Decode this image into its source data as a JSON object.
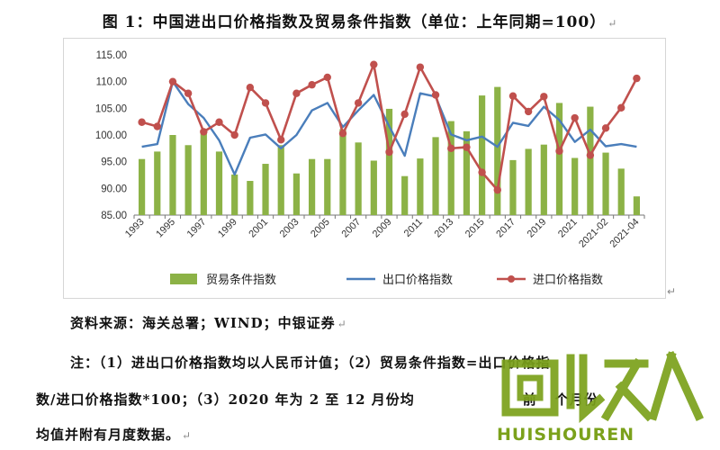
{
  "caption": "图 1：中国进出口价格指数及贸易条件指数（单位：上年同期=100）",
  "para_mark": "↵",
  "chart_data": {
    "type": "bar+line",
    "categories": [
      "1993",
      "1994",
      "1995",
      "1996",
      "1997",
      "1998",
      "1999",
      "2000",
      "2001",
      "2002",
      "2003",
      "2004",
      "2005",
      "2006",
      "2007",
      "2008",
      "2009",
      "2010",
      "2011",
      "2012",
      "2013",
      "2014",
      "2015",
      "2016",
      "2017",
      "2018",
      "2019",
      "2020",
      "2021",
      "2021-01",
      "2021-02",
      "2021-03",
      "2021-04"
    ],
    "xtick_labels": [
      "1993",
      "",
      "1995",
      "",
      "1997",
      "",
      "1999",
      "",
      "2001",
      "",
      "2003",
      "",
      "2005",
      "",
      "2007",
      "",
      "2009",
      "",
      "2011",
      "",
      "2013",
      "",
      "2015",
      "",
      "2017",
      "",
      "2019",
      "",
      "2021",
      "",
      "2021-02",
      "",
      "2021-04"
    ],
    "ylim": [
      85,
      115
    ],
    "yticks": [
      "85.00",
      "90.00",
      "95.00",
      "100.00",
      "105.00",
      "110.00",
      "115.00"
    ],
    "series": [
      {
        "name": "贸易条件指数",
        "kind": "bar",
        "color": "#8cb246",
        "values": [
          95.5,
          96.9,
          100.0,
          98.1,
          101.0,
          96.9,
          92.6,
          91.4,
          94.6,
          98.1,
          92.8,
          95.5,
          95.5,
          101.1,
          98.6,
          95.2,
          104.9,
          92.3,
          95.6,
          99.6,
          102.6,
          100.7,
          107.4,
          109.0,
          95.3,
          97.4,
          98.2,
          106.0,
          95.7,
          105.3,
          96.7,
          93.7,
          88.5
        ]
      },
      {
        "name": "出口价格指数",
        "kind": "line",
        "color": "#4a7ebb",
        "values": [
          97.8,
          98.3,
          110.0,
          105.8,
          103.2,
          99.0,
          92.6,
          99.5,
          100.1,
          97.5,
          100.0,
          104.6,
          106.0,
          101.5,
          104.6,
          107.5,
          101.6,
          96.1,
          107.8,
          107.2,
          100.1,
          99.0,
          99.7,
          97.8,
          102.3,
          101.7,
          105.3,
          102.8,
          98.7,
          101.0,
          97.9,
          98.3,
          97.8
        ]
      },
      {
        "name": "进口价格指数",
        "kind": "line-marker",
        "color": "#c0504d",
        "values": [
          102.4,
          101.6,
          110.0,
          107.8,
          100.6,
          102.4,
          100.0,
          108.9,
          106.0,
          99.1,
          107.8,
          109.4,
          110.8,
          100.3,
          106.0,
          113.2,
          96.8,
          103.9,
          112.7,
          107.5,
          97.5,
          97.7,
          93.0,
          89.7,
          107.3,
          104.4,
          107.2,
          97.0,
          103.2,
          96.2,
          101.3,
          105.1,
          110.6
        ]
      }
    ]
  },
  "source_text": "资料来源：海关总署；WIND；中银证券",
  "note_line_1": "注：（1）进出口价格指数均以人民币计值；（2）贸易条件指数=出口价格指",
  "note_line_2": "数/进口价格指数*100；（3）2020 年为 2 至 12 月份均",
  "note_line_2b": "前",
  "note_line_2c": "个月份",
  "note_line_3": "均值并附有月度数据。",
  "watermark": {
    "text": "HUISHOUREN",
    "color": "#7ba11b"
  }
}
